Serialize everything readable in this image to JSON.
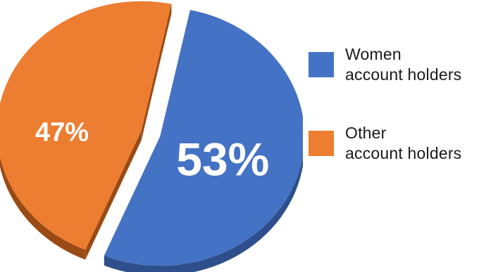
{
  "chart_data": {
    "type": "pie",
    "title": "",
    "series": [
      {
        "name": "",
        "values": [
          53,
          47
        ]
      }
    ],
    "categories": [
      "Women account holders",
      "Other account holders"
    ],
    "slices": [
      {
        "label": "Women account holders",
        "value": 53,
        "value_label": "53%",
        "color": "#4472c4",
        "side_color": "#2e4e8c"
      },
      {
        "label": "Other account holders",
        "value": 47,
        "value_label": "47%",
        "color": "#ed7d31",
        "side_color": "#9a4a14"
      }
    ],
    "legend_position": "right",
    "style": "3d-exploded"
  },
  "legend": {
    "items": [
      {
        "label": "Women\naccount holders",
        "color": "#4472c4"
      },
      {
        "label": "Other\naccount holders",
        "color": "#ed7d31"
      }
    ]
  }
}
